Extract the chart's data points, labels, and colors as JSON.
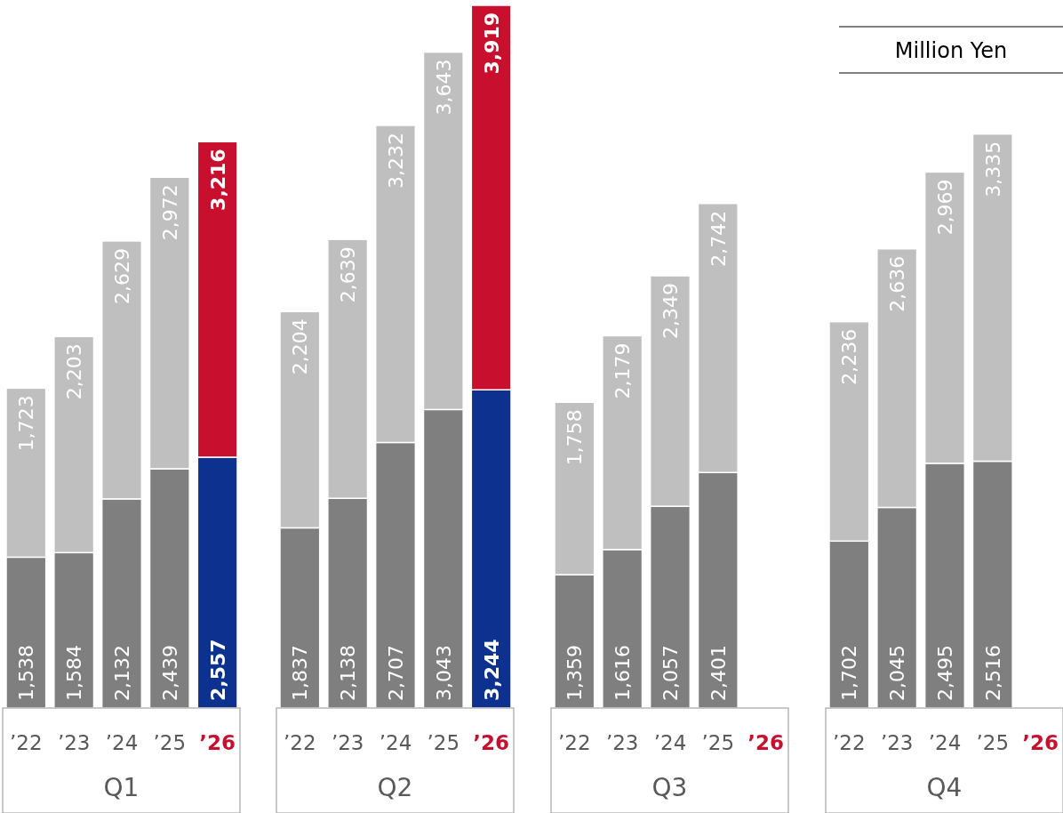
{
  "chart_data": [
    {
      "type": "bar",
      "stacked": true,
      "xlabel": "Q1",
      "categories": [
        "’22",
        "’23",
        "’24",
        "’25",
        "’26"
      ],
      "series": [
        {
          "colors": [
            "#7f7f7f",
            "#7f7f7f",
            "#7f7f7f",
            "#7f7f7f",
            "#0c318e"
          ],
          "values": [
            1538,
            1584,
            2132,
            2439,
            2557
          ],
          "value_labels": [
            "1,538",
            "1,584",
            "2,132",
            "2,439",
            "2,557"
          ]
        },
        {
          "colors": [
            "#bfbfbf",
            "#bfbfbf",
            "#bfbfbf",
            "#bfbfbf",
            "#c8102e"
          ],
          "values": [
            1723,
            2203,
            2629,
            2972,
            3216
          ],
          "value_labels": [
            "1,723",
            "2,203",
            "2,629",
            "2,972",
            "3,216"
          ]
        }
      ]
    },
    {
      "type": "bar",
      "stacked": true,
      "xlabel": "Q2",
      "categories": [
        "’22",
        "’23",
        "’24",
        "’25",
        "’26"
      ],
      "series": [
        {
          "colors": [
            "#7f7f7f",
            "#7f7f7f",
            "#7f7f7f",
            "#7f7f7f",
            "#0c318e"
          ],
          "values": [
            1837,
            2138,
            2707,
            3043,
            3244
          ],
          "value_labels": [
            "1,837",
            "2,138",
            "2,707",
            "3,043",
            "3,244"
          ]
        },
        {
          "colors": [
            "#bfbfbf",
            "#bfbfbf",
            "#bfbfbf",
            "#bfbfbf",
            "#c8102e"
          ],
          "values": [
            2204,
            2639,
            3232,
            3643,
            3919
          ],
          "value_labels": [
            "2,204",
            "2,639",
            "3,232",
            "3,643",
            "3,919"
          ]
        }
      ]
    },
    {
      "type": "bar",
      "stacked": true,
      "xlabel": "Q3",
      "categories": [
        "’22",
        "’23",
        "’24",
        "’25",
        "’26"
      ],
      "series": [
        {
          "colors": [
            "#7f7f7f",
            "#7f7f7f",
            "#7f7f7f",
            "#7f7f7f",
            null
          ],
          "values": [
            1359,
            1616,
            2057,
            2401,
            null
          ],
          "value_labels": [
            "1,359",
            "1,616",
            "2,057",
            "2,401",
            null
          ]
        },
        {
          "colors": [
            "#bfbfbf",
            "#bfbfbf",
            "#bfbfbf",
            "#bfbfbf",
            "#c8102e"
          ],
          "values": [
            1758,
            2179,
            2349,
            2742,
            null
          ],
          "value_labels": [
            "1,758",
            "2,179",
            "2,349",
            "2,742",
            null
          ]
        }
      ]
    },
    {
      "type": "bar",
      "stacked": true,
      "xlabel": "Q4",
      "annotations": [
        "Million Yen"
      ],
      "categories": [
        "’22",
        "’23",
        "’24",
        "’25",
        "’26"
      ],
      "series": [
        {
          "colors": [
            "#7f7f7f",
            "#7f7f7f",
            "#7f7f7f",
            "#7f7f7f",
            null
          ],
          "values": [
            1702,
            2045,
            2495,
            2516,
            null
          ],
          "value_labels": [
            "1,702",
            "2,045",
            "2,495",
            "2,516",
            null
          ]
        },
        {
          "colors": [
            "#bfbfbf",
            "#bfbfbf",
            "#bfbfbf",
            "#bfbfbf",
            "#c8102e"
          ],
          "values": [
            2236,
            2636,
            2969,
            3335,
            null
          ],
          "value_labels": [
            "2,236",
            "2,636",
            "2,969",
            "3,335",
            null
          ]
        }
      ]
    }
  ]
}
